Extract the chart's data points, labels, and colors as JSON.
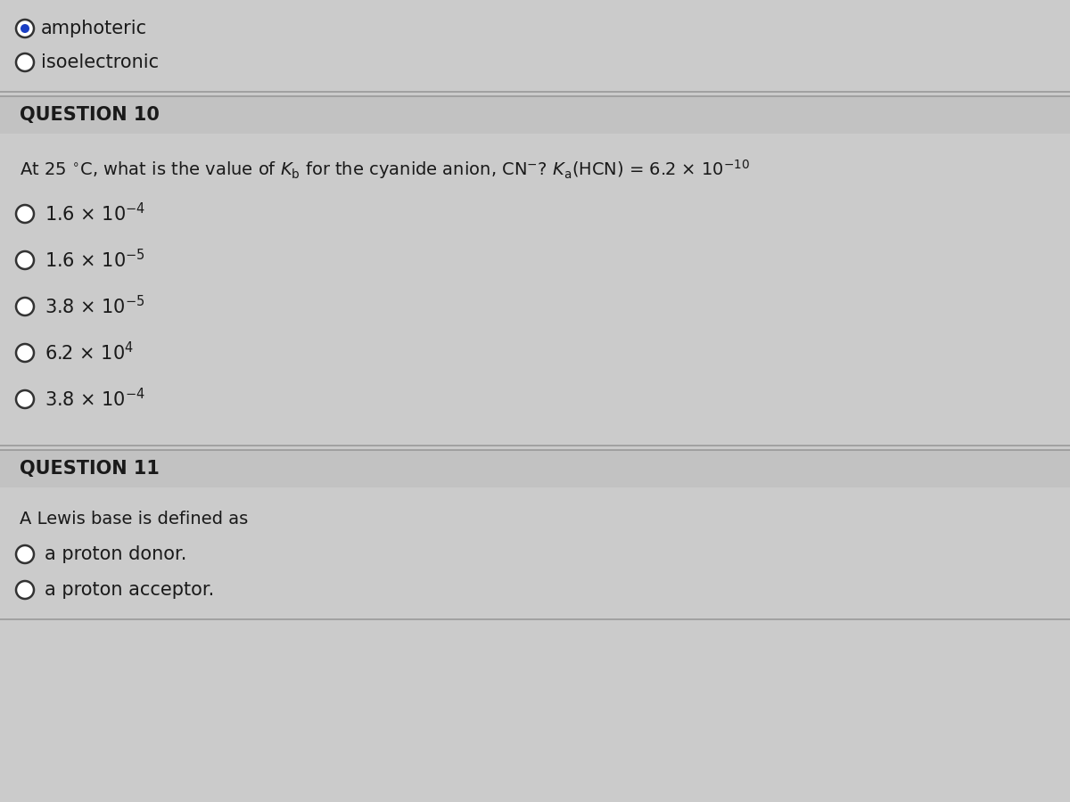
{
  "background_color": "#cbcbcb",
  "header_bg_color": "#c0c0c0",
  "text_color": "#1a1a1a",
  "top_options": [
    {
      "text": "amphoteric",
      "filled": true
    },
    {
      "text": "isoelectronic",
      "filled": false
    }
  ],
  "question10": {
    "label": "QUESTION 10",
    "question_latex": "At 25 $^{\\circ}$C, what is the value of $K_{\\mathrm{b}}$ for the cyanide anion, CN$^{-}$? $K_{\\mathrm{a}}$(HCN) = 6.2 × 10$^{-10}$",
    "options": [
      "1.6 × 10$^{-4}$",
      "1.6 × 10$^{-5}$",
      "3.8 × 10$^{-5}$",
      "6.2 × 10$^{4}$",
      "3.8 × 10$^{-4}$"
    ]
  },
  "question11": {
    "label": "QUESTION 11",
    "question": "A Lewis base is defined as",
    "options": [
      "a proton donor.",
      "a proton acceptor."
    ]
  },
  "divider_color": "#999999",
  "font_size_body": 15,
  "font_size_question": 14,
  "font_size_label": 15
}
